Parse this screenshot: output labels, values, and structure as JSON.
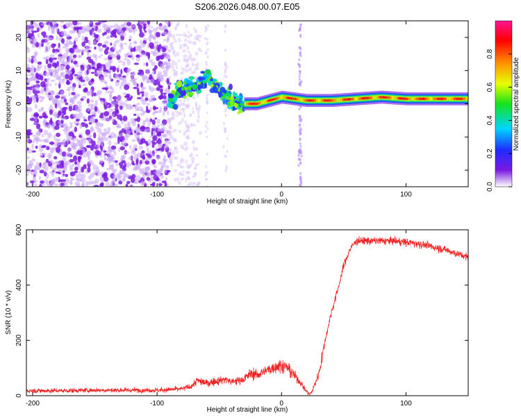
{
  "title": "S206.2026.048.00.07.E05",
  "chart_data": [
    {
      "type": "heatmap",
      "xlabel": "Height of straight line (km)",
      "ylabel": "Frequency (Hz)",
      "xlim": [
        -205,
        150
      ],
      "ylim": [
        -25,
        25
      ],
      "xticks": [
        "-200",
        "-100",
        "0",
        "100"
      ],
      "yticks": [
        "-20",
        "-10",
        "0",
        "10",
        "20"
      ],
      "colorbar": {
        "label": "Normalized spectral amplitude",
        "range": [
          0,
          1
        ],
        "ticks": [
          "0.0",
          "0.2",
          "0.4",
          "0.6",
          "0.8"
        ],
        "colors": [
          "#ffffff",
          "#7a1be0",
          "#1f2bff",
          "#00d5ff",
          "#16e21c",
          "#e8ff00",
          "#ff8c00",
          "#ff0000",
          "#ff1493"
        ]
      },
      "regions": [
        {
          "x_range": [
            -205,
            -90
          ],
          "freq_range": [
            -25,
            25
          ],
          "description": "scattered noise",
          "amplitude": 0.05
        },
        {
          "x_range": [
            -90,
            -30
          ],
          "freq_range": [
            -10,
            10
          ],
          "description": "onset bursts",
          "amplitude": 0.3
        },
        {
          "x_range": [
            -30,
            150
          ],
          "freq_center": 1,
          "freq_width": 1.5,
          "description": "coherent band",
          "amplitude": 0.8
        }
      ],
      "band_centers": [
        {
          "x": -85,
          "f": 4
        },
        {
          "x": -70,
          "f": 5
        },
        {
          "x": -60,
          "f": 8
        },
        {
          "x": -50,
          "f": 4
        },
        {
          "x": -40,
          "f": 1
        },
        {
          "x": -30,
          "f": 0
        },
        {
          "x": -20,
          "f": 0
        },
        {
          "x": -10,
          "f": 1
        },
        {
          "x": 0,
          "f": 2
        },
        {
          "x": 20,
          "f": 1
        },
        {
          "x": 40,
          "f": 1
        },
        {
          "x": 60,
          "f": 1.5
        },
        {
          "x": 80,
          "f": 2
        },
        {
          "x": 100,
          "f": 1.5
        },
        {
          "x": 120,
          "f": 1.5
        },
        {
          "x": 150,
          "f": 1.5
        }
      ],
      "spike_x": 15
    },
    {
      "type": "line",
      "xlabel": "Height of straight line (km)",
      "ylabel": "SNR (10 * v/v)",
      "xlim": [
        -205,
        150
      ],
      "ylim": [
        0,
        600
      ],
      "xticks": [
        "-200",
        "-100",
        "0",
        "100"
      ],
      "yticks": [
        "0",
        "200",
        "400",
        "600"
      ],
      "series": [
        {
          "name": "SNR",
          "color": "#ee2222",
          "x": [
            -205,
            -180,
            -150,
            -120,
            -100,
            -90,
            -80,
            -72,
            -68,
            -60,
            -50,
            -45,
            -40,
            -35,
            -30,
            -25,
            -20,
            -15,
            -10,
            -5,
            0,
            5,
            10,
            15,
            20,
            23,
            25,
            30,
            35,
            40,
            45,
            50,
            55,
            60,
            70,
            80,
            90,
            100,
            110,
            120,
            130,
            140,
            150
          ],
          "values": [
            18,
            18,
            20,
            20,
            20,
            22,
            25,
            35,
            55,
            45,
            55,
            60,
            50,
            55,
            60,
            80,
            75,
            85,
            95,
            105,
            110,
            100,
            75,
            50,
            15,
            5,
            20,
            80,
            200,
            300,
            380,
            470,
            530,
            560,
            560,
            560,
            560,
            555,
            550,
            540,
            530,
            515,
            500
          ]
        }
      ]
    }
  ]
}
